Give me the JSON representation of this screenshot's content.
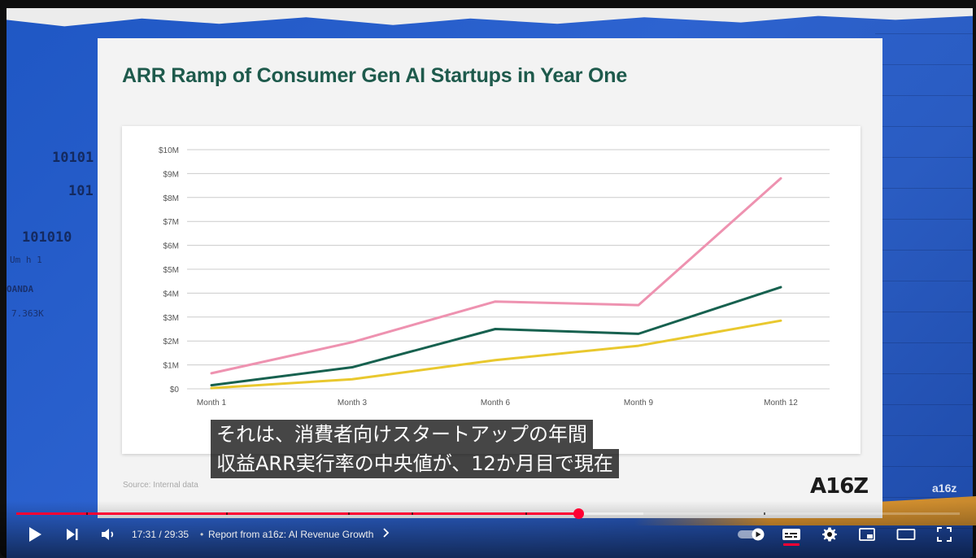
{
  "slide": {
    "title": "ARR Ramp of Consumer Gen AI Startups in Year One",
    "source": "Source: Internal data",
    "logo": "A16Z"
  },
  "watermark": "a16z",
  "background_text": {
    "line1": "10101",
    "line2": "101",
    "line3": "101010",
    "small1": "Um  h    1",
    "small2": "OANDA",
    "small3": "7.363K"
  },
  "chart_data": {
    "type": "line",
    "title": "ARR Ramp of Consumer Gen AI Startups in Year One",
    "categories": [
      "Month 1",
      "Month 3",
      "Month 6",
      "Month 9",
      "Month 12"
    ],
    "y_tick_labels": [
      "$0",
      "$1M",
      "$2M",
      "$3M",
      "$4M",
      "$5M",
      "$6M",
      "$7M",
      "$8M",
      "$9M",
      "$10M"
    ],
    "ylim": [
      0,
      10
    ],
    "grid": true,
    "series": [
      {
        "color": "#ee92b0",
        "values": [
          0.65,
          1.95,
          3.65,
          3.5,
          8.8
        ]
      },
      {
        "color": "#17614f",
        "values": [
          0.15,
          0.9,
          2.5,
          2.3,
          4.25
        ]
      },
      {
        "color": "#e9c82e",
        "values": [
          0.03,
          0.4,
          1.2,
          1.8,
          2.85
        ]
      }
    ]
  },
  "captions": {
    "line1": "それは、消費者向けスタートアップの年間",
    "line2": "収益ARR実行率の中央値が、12か月目で現在"
  },
  "player": {
    "current_time": "17:31",
    "duration": "29:35",
    "time_display": "17:31 / 29:35",
    "chapter": "Report from a16z: AI Revenue Growth",
    "progress_played": 0.596,
    "progress_buffered": 0.665,
    "chapter_markers": [
      0.074,
      0.222,
      0.352,
      0.419,
      0.54,
      0.792
    ],
    "autoplay_on": true,
    "subtitles_on": true,
    "accent_color": "#ff0033"
  }
}
